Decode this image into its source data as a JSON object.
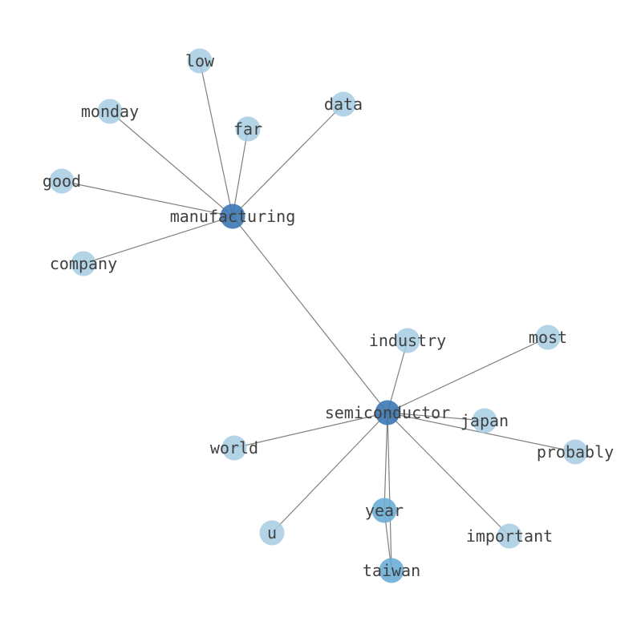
{
  "graph": {
    "colors": {
      "hub": "#3c78b4",
      "mid": "#6baed6",
      "leaf": "#a6cde3",
      "edge": "#808080",
      "label": "#404040"
    },
    "nodes": [
      {
        "id": "manufacturing",
        "tier": "hub"
      },
      {
        "id": "semiconductor",
        "tier": "hub"
      },
      {
        "id": "low",
        "tier": "leaf"
      },
      {
        "id": "monday",
        "tier": "leaf"
      },
      {
        "id": "far",
        "tier": "leaf"
      },
      {
        "id": "data",
        "tier": "leaf"
      },
      {
        "id": "good",
        "tier": "leaf"
      },
      {
        "id": "company",
        "tier": "leaf"
      },
      {
        "id": "industry",
        "tier": "leaf"
      },
      {
        "id": "most",
        "tier": "leaf"
      },
      {
        "id": "japan",
        "tier": "leaf"
      },
      {
        "id": "probably",
        "tier": "leaf"
      },
      {
        "id": "world",
        "tier": "leaf"
      },
      {
        "id": "year",
        "tier": "mid"
      },
      {
        "id": "u",
        "tier": "leaf"
      },
      {
        "id": "important",
        "tier": "leaf"
      },
      {
        "id": "taiwan",
        "tier": "mid"
      }
    ],
    "edges": [
      [
        "manufacturing",
        "low"
      ],
      [
        "manufacturing",
        "monday"
      ],
      [
        "manufacturing",
        "far"
      ],
      [
        "manufacturing",
        "data"
      ],
      [
        "manufacturing",
        "good"
      ],
      [
        "manufacturing",
        "company"
      ],
      [
        "manufacturing",
        "semiconductor"
      ],
      [
        "semiconductor",
        "industry"
      ],
      [
        "semiconductor",
        "most"
      ],
      [
        "semiconductor",
        "japan"
      ],
      [
        "semiconductor",
        "probably"
      ],
      [
        "semiconductor",
        "world"
      ],
      [
        "semiconductor",
        "year"
      ],
      [
        "semiconductor",
        "u"
      ],
      [
        "semiconductor",
        "important"
      ],
      [
        "semiconductor",
        "taiwan"
      ],
      [
        "year",
        "taiwan"
      ]
    ]
  }
}
